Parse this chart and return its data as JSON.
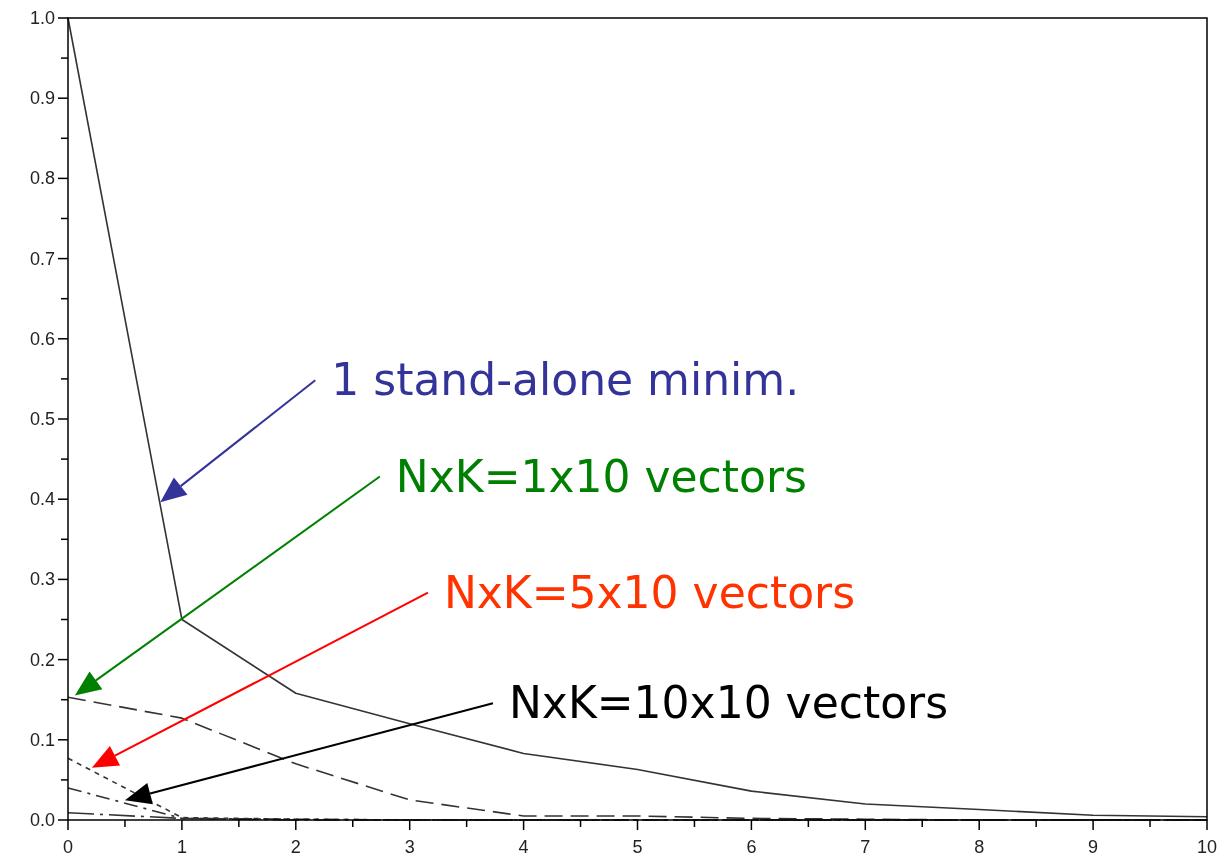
{
  "chart_data": {
    "type": "line",
    "x": [
      0,
      1,
      2,
      3,
      4,
      5,
      6,
      7,
      8,
      9,
      10
    ],
    "series": [
      {
        "color": "#333333",
        "line_style": "solid",
        "values": [
          1.0,
          0.25,
          0.158,
          0.12,
          0.083,
          0.063,
          0.036,
          0.02,
          0.013,
          0.006,
          0.004
        ]
      },
      {
        "color": "#333333",
        "line_style": "dashed",
        "values": [
          0.153,
          0.127,
          0.07,
          0.025,
          0.005,
          0.005,
          0.002,
          0.001,
          0.0,
          0.0,
          0.0
        ]
      },
      {
        "color": "#333333",
        "line_style": "dotted",
        "values": [
          0.077,
          0.003,
          0.001,
          0.0,
          0.0,
          0.0,
          0.0,
          0.0,
          0.0,
          0.0,
          0.0
        ]
      },
      {
        "color": "#333333",
        "line_style": "dashdot",
        "values": [
          0.04,
          0.002,
          0.001,
          0.0,
          0.0,
          0.0,
          0.0,
          0.0,
          0.0,
          0.0,
          0.0
        ]
      },
      {
        "color": "#333333",
        "line_style": "longdashdot",
        "values": [
          0.009,
          0.002,
          0.0,
          0.0,
          0.0,
          0.0,
          0.0,
          0.0,
          0.0,
          0.0,
          0.0
        ]
      }
    ],
    "xlim": [
      0,
      10
    ],
    "xticks": [
      0,
      {
        "value": 0.5,
        "label": null
      },
      1,
      {
        "value": 1.5,
        "label": null
      },
      2,
      {
        "value": 2.5,
        "label": null
      },
      3,
      {
        "value": 3.5,
        "label": null
      },
      4,
      {
        "value": 4.5,
        "label": null
      },
      5,
      {
        "value": 5.5,
        "label": null
      },
      6,
      {
        "value": 6.5,
        "label": null
      },
      7,
      {
        "value": 7.5,
        "label": null
      },
      8,
      {
        "value": 8.5,
        "label": null
      },
      9,
      {
        "value": 9.5,
        "label": null
      },
      10
    ],
    "ylim": [
      0,
      1
    ],
    "yticks": [
      {
        "value": 0,
        "label": "0.0"
      },
      {
        "value": 0.05,
        "label": null
      },
      0.1,
      {
        "value": 0.15,
        "label": null
      },
      0.2,
      {
        "value": 0.25,
        "label": null
      },
      0.3,
      {
        "value": 0.35,
        "label": null
      },
      0.4,
      {
        "value": 0.45,
        "label": null
      },
      0.5,
      {
        "value": 0.55,
        "label": null
      },
      0.6,
      {
        "value": 0.65,
        "label": null
      },
      0.7,
      {
        "value": 0.75,
        "label": null
      },
      0.8,
      {
        "value": 0.85,
        "label": null
      },
      0.9,
      {
        "value": 0.95,
        "label": null
      },
      {
        "value": 1,
        "label": "1.0"
      }
    ],
    "grid": false,
    "marker": "none",
    "annotations": [
      "1 stand-alone minim.",
      "NxK=1x10 vectors",
      "NxK=5x10 vectors",
      "NxK=10x10 vectors"
    ]
  }
}
